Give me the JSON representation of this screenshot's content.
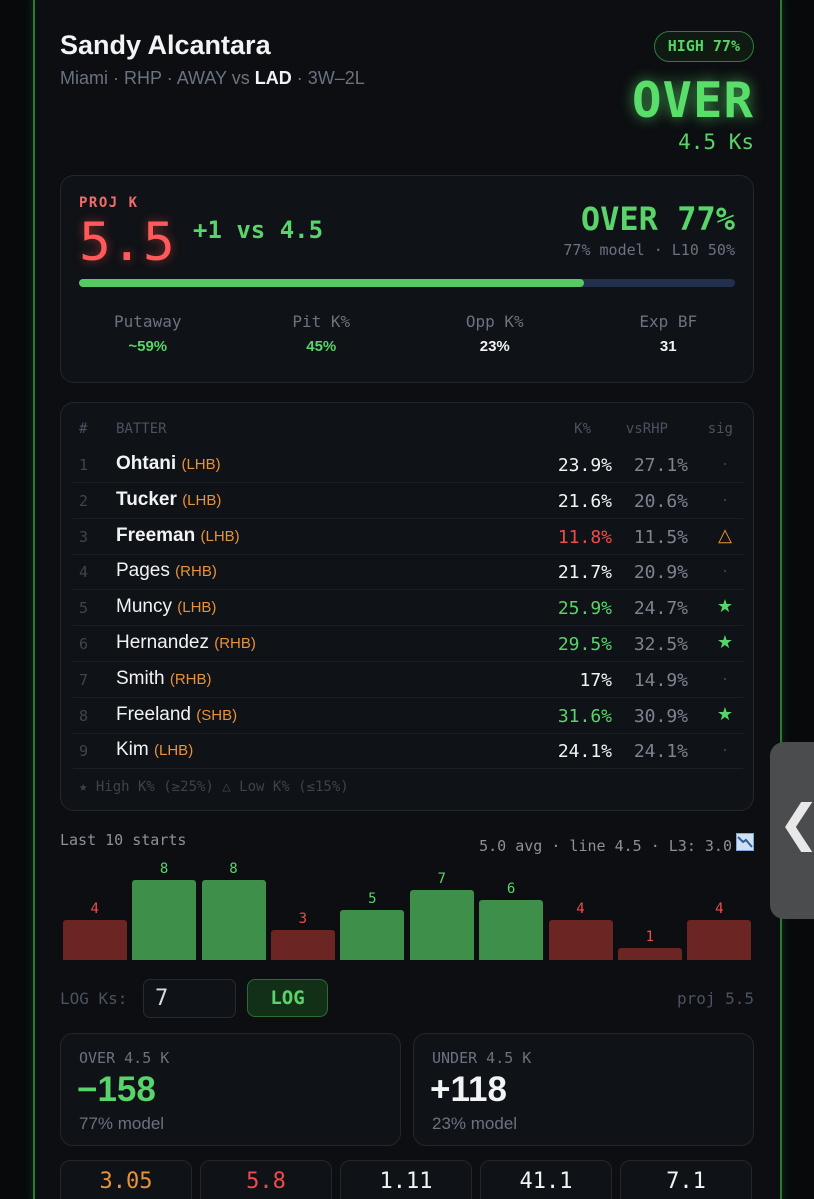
{
  "header": {
    "name": "Sandy Alcantara",
    "team": "Miami",
    "position": "RHP",
    "location": "AWAY vs",
    "opponent": "LAD",
    "record": "3W–2L",
    "confidence": "HIGH 77%",
    "verdict": "OVER",
    "line": "4.5 Ks"
  },
  "projection": {
    "label": "PROJ K",
    "value": "5.5",
    "diff": "+1 vs 4.5",
    "verdict": "OVER 77%",
    "sub": "77% model · L10 50%",
    "probability": 0.77,
    "stats": [
      {
        "label": "Putaway",
        "value": "~59%",
        "color": "#58d46a"
      },
      {
        "label": "Pit K%",
        "value": "45%",
        "color": "#58d46a"
      },
      {
        "label": "Opp K%",
        "value": "23%",
        "color": "#f1f3f5"
      },
      {
        "label": "Exp BF",
        "value": "31",
        "color": "#f1f3f5"
      }
    ]
  },
  "lineup": {
    "headers": {
      "num": "#",
      "batter": "BATTER",
      "k": "K%",
      "vs": "vsRHP",
      "sig": "sig"
    },
    "batters": [
      {
        "num": "1",
        "name": "Ohtani",
        "hand": "(LHB)",
        "bold": true,
        "k": "23.9%",
        "vs": "27.1%",
        "k_color": "#f1f3f5",
        "sig": "·",
        "sig_color": "#3f4550"
      },
      {
        "num": "2",
        "name": "Tucker",
        "hand": "(LHB)",
        "bold": true,
        "k": "21.6%",
        "vs": "20.6%",
        "k_color": "#f1f3f5",
        "sig": "·",
        "sig_color": "#3f4550"
      },
      {
        "num": "3",
        "name": "Freeman",
        "hand": "(LHB)",
        "bold": true,
        "k": "11.8%",
        "vs": "11.5%",
        "k_color": "#f04b4b",
        "sig": "△",
        "sig_color": "#e8923a"
      },
      {
        "num": "4",
        "name": "Pages",
        "hand": "(RHB)",
        "bold": false,
        "k": "21.7%",
        "vs": "20.9%",
        "k_color": "#f1f3f5",
        "sig": "·",
        "sig_color": "#3f4550"
      },
      {
        "num": "5",
        "name": "Muncy",
        "hand": "(LHB)",
        "bold": false,
        "k": "25.9%",
        "vs": "24.7%",
        "k_color": "#58d46a",
        "sig": "★",
        "sig_color": "#58d46a"
      },
      {
        "num": "6",
        "name": "Hernandez",
        "hand": "(RHB)",
        "bold": false,
        "k": "29.5%",
        "vs": "32.5%",
        "k_color": "#58d46a",
        "sig": "★",
        "sig_color": "#58d46a"
      },
      {
        "num": "7",
        "name": "Smith",
        "hand": "(RHB)",
        "bold": false,
        "k": "17%",
        "vs": "14.9%",
        "k_color": "#f1f3f5",
        "sig": "·",
        "sig_color": "#3f4550"
      },
      {
        "num": "8",
        "name": "Freeland",
        "hand": "(SHB)",
        "bold": false,
        "k": "31.6%",
        "vs": "30.9%",
        "k_color": "#58d46a",
        "sig": "★",
        "sig_color": "#58d46a"
      },
      {
        "num": "9",
        "name": "Kim",
        "hand": "(LHB)",
        "bold": false,
        "k": "24.1%",
        "vs": "24.1%",
        "k_color": "#f1f3f5",
        "sig": "·",
        "sig_color": "#3f4550"
      }
    ],
    "legend": "★ High K% (≥25%) △ Low K% (≤15%)"
  },
  "last10": {
    "title": "Last 10 starts",
    "stats": "5.0 avg · line 4.5 · L3: 3.0",
    "trend_icon": "chart-down-icon",
    "values": [
      4,
      8,
      8,
      3,
      5,
      7,
      6,
      4,
      1,
      4
    ],
    "line": 4.5,
    "over_color": "#3e8f4a",
    "under_color": "#6b2522"
  },
  "log": {
    "label": "LOG Ks:",
    "value": "7",
    "button": "LOG",
    "proj": "proj 5.5"
  },
  "odds": [
    {
      "title": "OVER 4.5 K",
      "price": "−158",
      "model": "77% model",
      "color": "#58d46a"
    },
    {
      "title": "UNDER 4.5 K",
      "price": "+118",
      "model": "23% model",
      "color": "#f1f3f5"
    }
  ],
  "mini_stats": [
    {
      "value": "3.05",
      "color": "#e8923a"
    },
    {
      "value": "5.8",
      "color": "#f04b4b"
    },
    {
      "value": "1.11",
      "color": "#f1f3f5"
    },
    {
      "value": "41.1",
      "color": "#f1f3f5"
    },
    {
      "value": "7.1",
      "color": "#f1f3f5"
    }
  ],
  "side_tab": {
    "icon": "chevron-left-icon",
    "glyph": "❮"
  }
}
